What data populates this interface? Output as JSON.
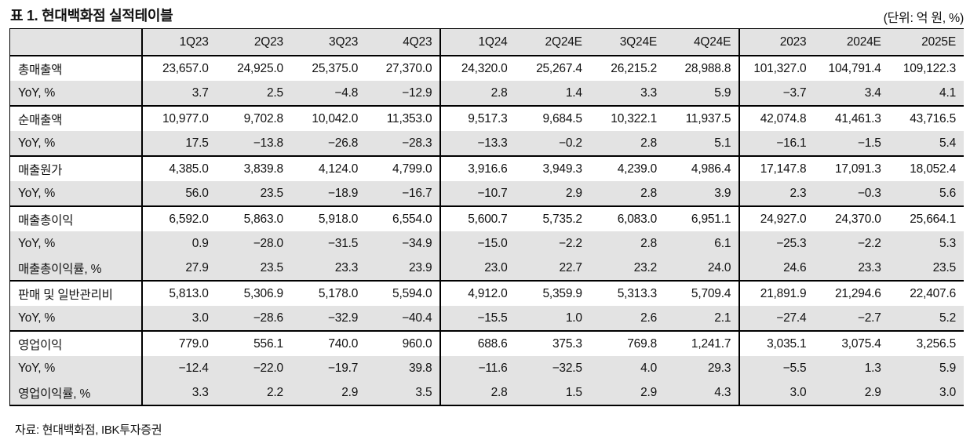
{
  "page": {
    "title": "표 1. 현대백화점 실적테이블",
    "unit_label": "(단위: 억 원, %)",
    "source": "자료: 현대백화점, IBK투자증권"
  },
  "colors": {
    "row_shade": "#e3e3e3",
    "border": "#000000",
    "text": "#111111"
  },
  "table": {
    "corner_header": "",
    "columns": [
      "1Q23",
      "2Q23",
      "3Q23",
      "4Q23",
      "1Q24",
      "2Q24E",
      "3Q24E",
      "4Q24E",
      "2023",
      "2024E",
      "2025E"
    ],
    "group_breaks_after": [
      3,
      7
    ],
    "rows": [
      {
        "label": "총매출액",
        "shaded": false,
        "section_start": true,
        "values": [
          "23,657.0",
          "24,925.0",
          "25,375.0",
          "27,370.0",
          "24,320.0",
          "25,267.4",
          "26,215.2",
          "28,988.8",
          "101,327.0",
          "104,791.4",
          "109,122.3"
        ]
      },
      {
        "label": "YoY, %",
        "shaded": true,
        "section_start": false,
        "values": [
          "3.7",
          "2.5",
          "−4.8",
          "−12.9",
          "2.8",
          "1.4",
          "3.3",
          "5.9",
          "−3.7",
          "3.4",
          "4.1"
        ]
      },
      {
        "label": "순매출액",
        "shaded": false,
        "section_start": true,
        "values": [
          "10,977.0",
          "9,702.8",
          "10,042.0",
          "11,353.0",
          "9,517.3",
          "9,684.5",
          "10,322.1",
          "11,937.5",
          "42,074.8",
          "41,461.3",
          "43,716.5"
        ]
      },
      {
        "label": "YoY, %",
        "shaded": true,
        "section_start": false,
        "values": [
          "17.5",
          "−13.8",
          "−26.8",
          "−28.3",
          "−13.3",
          "−0.2",
          "2.8",
          "5.1",
          "−16.1",
          "−1.5",
          "5.4"
        ]
      },
      {
        "label": "매출원가",
        "shaded": false,
        "section_start": true,
        "values": [
          "4,385.0",
          "3,839.8",
          "4,124.0",
          "4,799.0",
          "3,916.6",
          "3,949.3",
          "4,239.0",
          "4,986.4",
          "17,147.8",
          "17,091.3",
          "18,052.4"
        ]
      },
      {
        "label": "YoY, %",
        "shaded": true,
        "section_start": false,
        "values": [
          "56.0",
          "23.5",
          "−18.9",
          "−16.7",
          "−10.7",
          "2.9",
          "2.8",
          "3.9",
          "2.3",
          "−0.3",
          "5.6"
        ]
      },
      {
        "label": "매출총이익",
        "shaded": false,
        "section_start": true,
        "values": [
          "6,592.0",
          "5,863.0",
          "5,918.0",
          "6,554.0",
          "5,600.7",
          "5,735.2",
          "6,083.0",
          "6,951.1",
          "24,927.0",
          "24,370.0",
          "25,664.1"
        ]
      },
      {
        "label": "YoY, %",
        "shaded": true,
        "section_start": false,
        "values": [
          "0.9",
          "−28.0",
          "−31.5",
          "−34.9",
          "−15.0",
          "−2.2",
          "2.8",
          "6.1",
          "−25.3",
          "−2.2",
          "5.3"
        ]
      },
      {
        "label": "매출총이익률, %",
        "shaded": true,
        "section_start": false,
        "values": [
          "27.9",
          "23.5",
          "23.3",
          "23.9",
          "23.0",
          "22.7",
          "23.2",
          "24.0",
          "24.6",
          "23.3",
          "23.5"
        ]
      },
      {
        "label": "판매 및 일반관리비",
        "shaded": false,
        "section_start": true,
        "values": [
          "5,813.0",
          "5,306.9",
          "5,178.0",
          "5,594.0",
          "4,912.0",
          "5,359.9",
          "5,313.3",
          "5,709.4",
          "21,891.9",
          "21,294.6",
          "22,407.6"
        ]
      },
      {
        "label": "YoY, %",
        "shaded": true,
        "section_start": false,
        "values": [
          "3.0",
          "−28.6",
          "−32.9",
          "−40.4",
          "−15.5",
          "1.0",
          "2.6",
          "2.1",
          "−27.4",
          "−2.7",
          "5.2"
        ]
      },
      {
        "label": "영업이익",
        "shaded": false,
        "section_start": true,
        "values": [
          "779.0",
          "556.1",
          "740.0",
          "960.0",
          "688.6",
          "375.3",
          "769.8",
          "1,241.7",
          "3,035.1",
          "3,075.4",
          "3,256.5"
        ]
      },
      {
        "label": "YoY, %",
        "shaded": true,
        "section_start": false,
        "values": [
          "−12.4",
          "−22.0",
          "−19.7",
          "39.8",
          "−11.6",
          "−32.5",
          "4.0",
          "29.3",
          "−5.5",
          "1.3",
          "5.9"
        ]
      },
      {
        "label": "영업이익률, %",
        "shaded": true,
        "section_start": false,
        "values": [
          "3.3",
          "2.2",
          "2.9",
          "3.5",
          "2.8",
          "1.5",
          "2.9",
          "4.3",
          "3.0",
          "2.9",
          "3.0"
        ]
      }
    ]
  }
}
